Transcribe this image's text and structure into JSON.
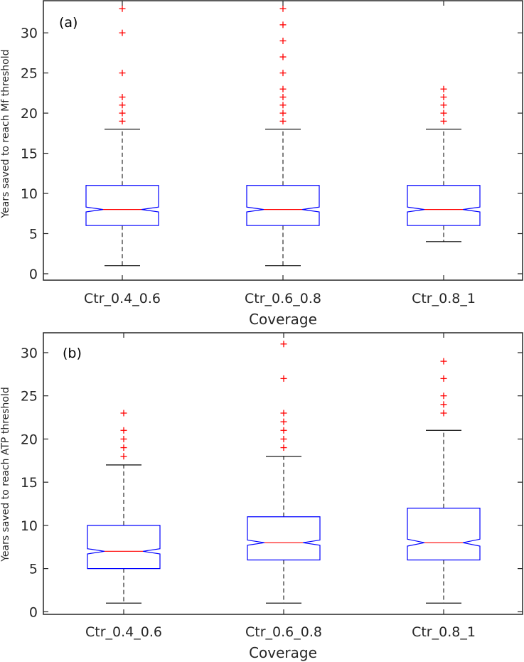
{
  "colors": {
    "box": "#0000ff",
    "median": "#ff0000",
    "outlier": "#ff0000",
    "whisker": "#000000",
    "axis": "#262626"
  },
  "chart_data": [
    {
      "type": "box",
      "panel_label": "(a)",
      "xlabel": "Coverage",
      "ylabel": "Years saved to reach Mf threshold",
      "ylim": [
        -0.8,
        34
      ],
      "yticks": [
        0,
        5,
        10,
        15,
        20,
        25,
        30
      ],
      "categories": [
        "Ctr_0.4_0.6",
        "Ctr_0.6_0.8",
        "Ctr_0.8_1"
      ],
      "boxes": [
        {
          "whisker_low": 1,
          "q1": 6,
          "median": 8,
          "q3": 11,
          "whisker_high": 18,
          "notch_low": 7.7,
          "notch_high": 8.3,
          "outliers": [
            19,
            20,
            21,
            22,
            25,
            30,
            33
          ]
        },
        {
          "whisker_low": 1,
          "q1": 6,
          "median": 8,
          "q3": 11,
          "whisker_high": 18,
          "notch_low": 7.7,
          "notch_high": 8.3,
          "outliers": [
            19,
            20,
            21,
            22,
            23,
            25,
            27,
            29,
            31,
            33
          ]
        },
        {
          "whisker_low": 4,
          "q1": 6,
          "median": 8,
          "q3": 11,
          "whisker_high": 18,
          "notch_low": 7.7,
          "notch_high": 8.3,
          "outliers": [
            19,
            20,
            21,
            22,
            23
          ]
        }
      ]
    },
    {
      "type": "box",
      "panel_label": "(b)",
      "xlabel": "Coverage",
      "ylabel": "Years saved to reach ATP threshold",
      "ylim": [
        -0.3,
        32.3
      ],
      "yticks": [
        0,
        5,
        10,
        15,
        20,
        25,
        30
      ],
      "categories": [
        "Ctr_0.4_0.6",
        "Ctr_0.6_0.8",
        "Ctr_0.8_1"
      ],
      "boxes": [
        {
          "whisker_low": 1,
          "q1": 5,
          "median": 7,
          "q3": 10,
          "whisker_high": 17,
          "notch_low": 6.7,
          "notch_high": 7.3,
          "outliers": [
            18,
            19,
            20,
            21,
            23
          ]
        },
        {
          "whisker_low": 1,
          "q1": 6,
          "median": 8,
          "q3": 11,
          "whisker_high": 18,
          "notch_low": 7.7,
          "notch_high": 8.3,
          "outliers": [
            19,
            20,
            21,
            22,
            23,
            27,
            31
          ]
        },
        {
          "whisker_low": 1,
          "q1": 6,
          "median": 8,
          "q3": 12,
          "whisker_high": 21,
          "notch_low": 7.6,
          "notch_high": 8.4,
          "outliers": [
            23,
            24,
            25,
            27,
            29
          ]
        }
      ]
    }
  ]
}
